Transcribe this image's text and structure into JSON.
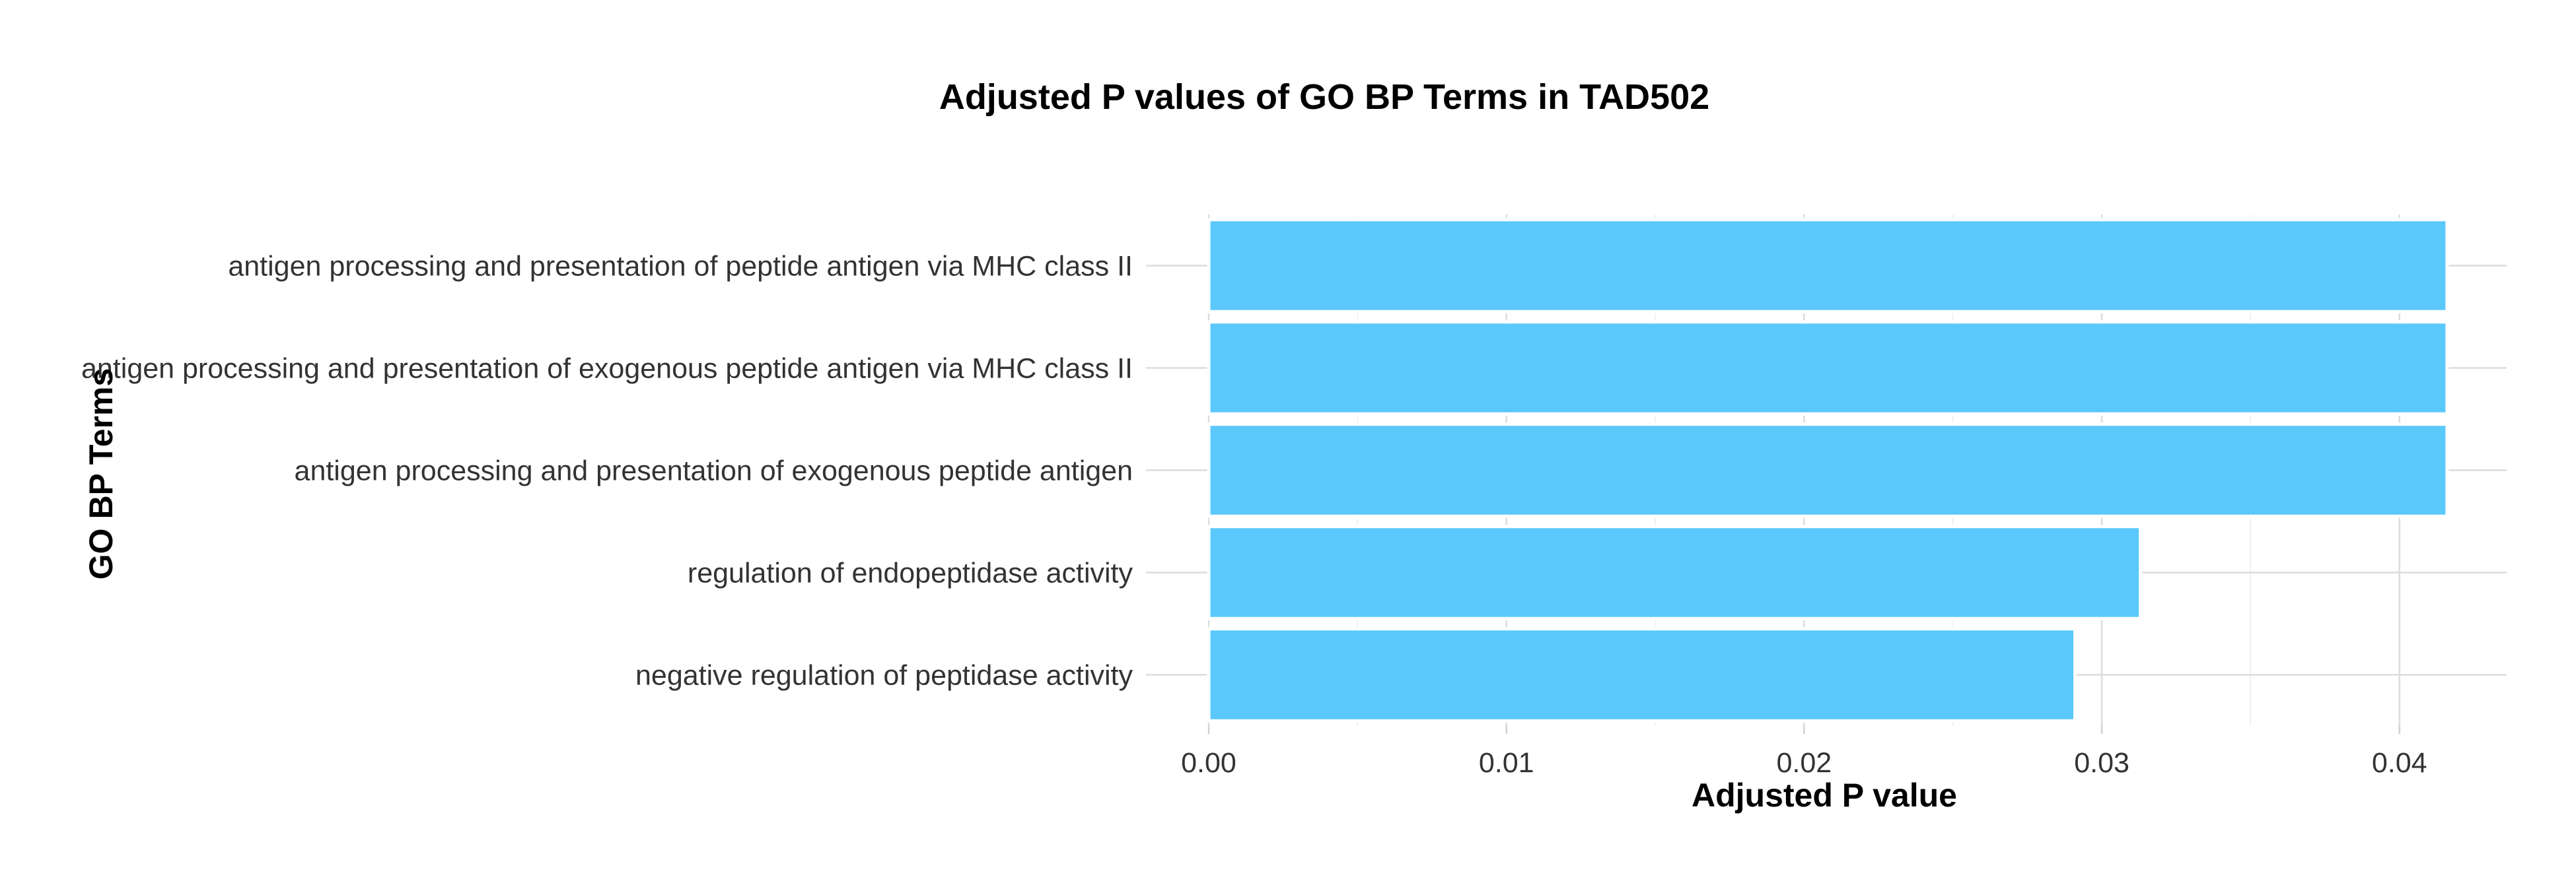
{
  "chart_data": {
    "type": "bar",
    "orientation": "horizontal",
    "title": "Adjusted P values of GO BP Terms in TAD502",
    "xlabel": "Adjusted P value",
    "ylabel": "GO BP Terms",
    "categories": [
      "antigen processing and presentation of peptide antigen via MHC class II",
      "antigen processing and presentation of exogenous peptide antigen via MHC class II",
      "antigen processing and presentation of exogenous peptide antigen",
      "regulation of endopeptidase activity",
      "negative regulation of peptidase activity"
    ],
    "values": [
      0.0416,
      0.0416,
      0.0416,
      0.0313,
      0.0291
    ],
    "xlim": [
      0,
      0.0436
    ],
    "xticks": [
      0.0,
      0.01,
      0.02,
      0.03,
      0.04
    ],
    "xtick_labels": [
      "0.00",
      "0.01",
      "0.02",
      "0.03",
      "0.04"
    ],
    "bar_color": "#5bc8fb",
    "grid": true,
    "legend": "none"
  }
}
